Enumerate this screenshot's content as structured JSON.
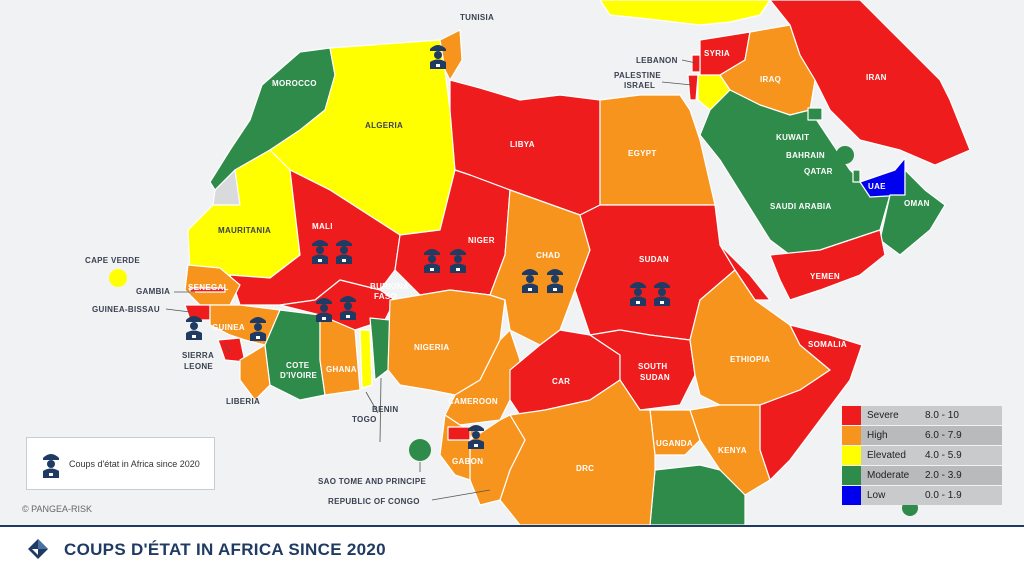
{
  "title": "COUPS D'ÉTAT IN AFRICA SINCE 2020",
  "copyright": "© PANGEA-RISK",
  "coup_legend_label": "Coups d'état in Africa since 2020",
  "risk_legend": [
    {
      "name": "Severe",
      "range": "8.0 - 10",
      "color": "#ee1c1c"
    },
    {
      "name": "High",
      "range": "6.0 - 7.9",
      "color": "#f7941d"
    },
    {
      "name": "Elevated",
      "range": "4.0 - 5.9",
      "color": "#ffff00"
    },
    {
      "name": "Moderate",
      "range": "2.0 - 3.9",
      "color": "#2e8b4a"
    },
    {
      "name": "Low",
      "range": "0.0 - 1.9",
      "color": "#0000ee"
    }
  ],
  "country_labels": {
    "tunisia": "TUNISIA",
    "morocco": "MOROCCO",
    "algeria": "ALGERIA",
    "libya": "LIBYA",
    "egypt": "EGYPT",
    "lebanon": "LEBANON",
    "palestine": "PALESTINE",
    "israel": "ISRAEL",
    "syria": "SYRIA",
    "iraq": "IRAQ",
    "iran": "IRAN",
    "kuwait": "KUWAIT",
    "bahrain": "BAHRAIN",
    "qatar": "QATAR",
    "uae": "UAE",
    "saudi_arabia": "SAUDI ARABIA",
    "oman": "OMAN",
    "yemen": "YEMEN",
    "mauritania": "MAURITANIA",
    "mali": "MALI",
    "niger": "NIGER",
    "chad": "CHAD",
    "sudan": "SUDAN",
    "cape_verde": "CAPE VERDE",
    "senegal": "SENEGAL",
    "gambia": "GAMBIA",
    "guinea_bissau": "GUINEA-BISSAU",
    "guinea": "GUINEA",
    "burkina_faso_1": "BURKINA",
    "burkina_faso_2": "FASO",
    "sierra_leone_1": "SIERRA",
    "sierra_leone_2": "LEONE",
    "liberia": "LIBERIA",
    "cote_divoire_1": "COTE",
    "cote_divoire_2": "D'IVOIRE",
    "ghana": "GHANA",
    "togo": "TOGO",
    "benin": "BENIN",
    "nigeria": "NIGERIA",
    "cameroon": "CAMEROON",
    "car": "CAR",
    "south_sudan_1": "SOUTH",
    "south_sudan_2": "SUDAN",
    "ethiopia": "ETHIOPIA",
    "somalia": "SOMALIA",
    "uganda": "UGANDA",
    "kenya": "KENYA",
    "drc": "DRC",
    "gabon": "GABON",
    "sao_tome": "SAO TOME AND PRINCIPE",
    "rep_congo": "REPUBLIC OF CONGO"
  },
  "colors": {
    "severe": "#ee1c1c",
    "high": "#f7941d",
    "elevated": "#ffff00",
    "moderate": "#2e8b4a",
    "low": "#0000ee",
    "icon": "#1f3b63"
  }
}
